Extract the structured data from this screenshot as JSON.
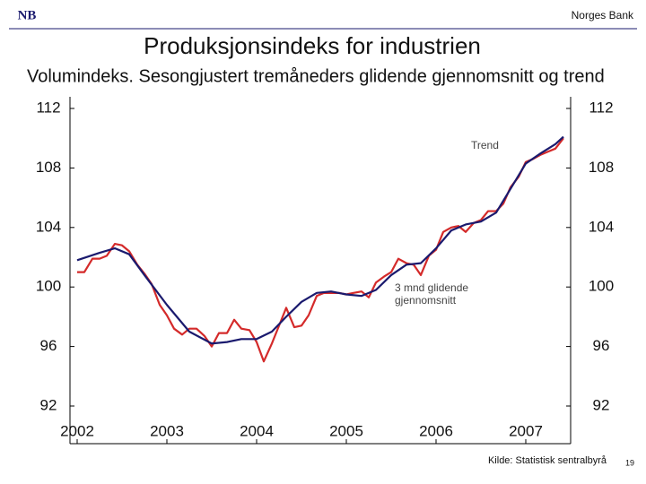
{
  "header": {
    "logo": "NB",
    "organization": "Norges Bank"
  },
  "chart_data": {
    "type": "line",
    "title": "Produksjonsindeks for industrien",
    "subtitle": "Volumindeks. Sesongjustert tremåneders glidende gjennomsnitt og trend",
    "xlim": [
      2001.92,
      2007.5
    ],
    "xticks": [
      2002,
      2003,
      2004,
      2005,
      2006,
      2007
    ],
    "ylim": [
      92,
      112
    ],
    "yticks": [
      92,
      96,
      100,
      104,
      108,
      112
    ],
    "y2lim": [
      92,
      112
    ],
    "y2ticks": [
      92,
      96,
      100,
      104,
      108,
      112
    ],
    "series": [
      {
        "name": "3 mnd glidende gjennomsnitt",
        "color": "#d42a2a",
        "x": [
          2002.0,
          2002.08,
          2002.17,
          2002.25,
          2002.33,
          2002.42,
          2002.5,
          2002.58,
          2002.67,
          2002.75,
          2002.83,
          2002.92,
          2003.0,
          2003.08,
          2003.17,
          2003.25,
          2003.33,
          2003.42,
          2003.5,
          2003.58,
          2003.67,
          2003.75,
          2003.83,
          2003.92,
          2004.0,
          2004.08,
          2004.17,
          2004.25,
          2004.33,
          2004.42,
          2004.5,
          2004.58,
          2004.67,
          2004.75,
          2004.83,
          2004.92,
          2005.0,
          2005.08,
          2005.17,
          2005.25,
          2005.33,
          2005.42,
          2005.5,
          2005.58,
          2005.67,
          2005.75,
          2005.83,
          2005.92,
          2006.0,
          2006.08,
          2006.17,
          2006.25,
          2006.33,
          2006.42,
          2006.5,
          2006.58,
          2006.67,
          2006.75,
          2006.83,
          2006.92,
          2007.0,
          2007.08,
          2007.17,
          2007.25,
          2007.33,
          2007.42
        ],
        "values": [
          101.0,
          101.0,
          101.9,
          101.9,
          102.1,
          102.9,
          102.8,
          102.4,
          101.5,
          100.9,
          100.2,
          98.8,
          98.1,
          97.2,
          96.8,
          97.2,
          97.2,
          96.7,
          96.0,
          96.9,
          96.9,
          97.8,
          97.2,
          97.1,
          96.3,
          95.0,
          96.2,
          97.4,
          98.6,
          97.3,
          97.4,
          98.1,
          99.4,
          99.6,
          99.6,
          99.6,
          99.5,
          99.6,
          99.7,
          99.3,
          100.3,
          100.7,
          101.0,
          101.9,
          101.6,
          101.5,
          100.8,
          102.1,
          102.5,
          103.7,
          104.0,
          104.1,
          103.7,
          104.3,
          104.5,
          105.1,
          105.1,
          105.6,
          106.7,
          107.4,
          108.4,
          108.6,
          108.9,
          109.1,
          109.3,
          110.0
        ]
      },
      {
        "name": "Trend",
        "color": "#1a1a6e",
        "x": [
          2002.0,
          2002.25,
          2002.42,
          2002.58,
          2002.75,
          2003.0,
          2003.25,
          2003.5,
          2003.67,
          2003.83,
          2004.0,
          2004.17,
          2004.33,
          2004.5,
          2004.67,
          2004.83,
          2005.0,
          2005.17,
          2005.33,
          2005.5,
          2005.67,
          2005.83,
          2006.0,
          2006.17,
          2006.33,
          2006.5,
          2006.67,
          2006.83,
          2007.0,
          2007.17,
          2007.33,
          2007.42
        ],
        "values": [
          101.8,
          102.3,
          102.6,
          102.2,
          100.8,
          98.8,
          97.0,
          96.2,
          96.3,
          96.5,
          96.5,
          97.0,
          98.0,
          99.0,
          99.6,
          99.7,
          99.5,
          99.4,
          99.8,
          100.8,
          101.5,
          101.6,
          102.6,
          103.8,
          104.2,
          104.4,
          105.0,
          106.6,
          108.3,
          109.0,
          109.6,
          110.1
        ]
      }
    ],
    "source": "Kilde: Statistisk sentralbyrå"
  },
  "page_number": "19"
}
